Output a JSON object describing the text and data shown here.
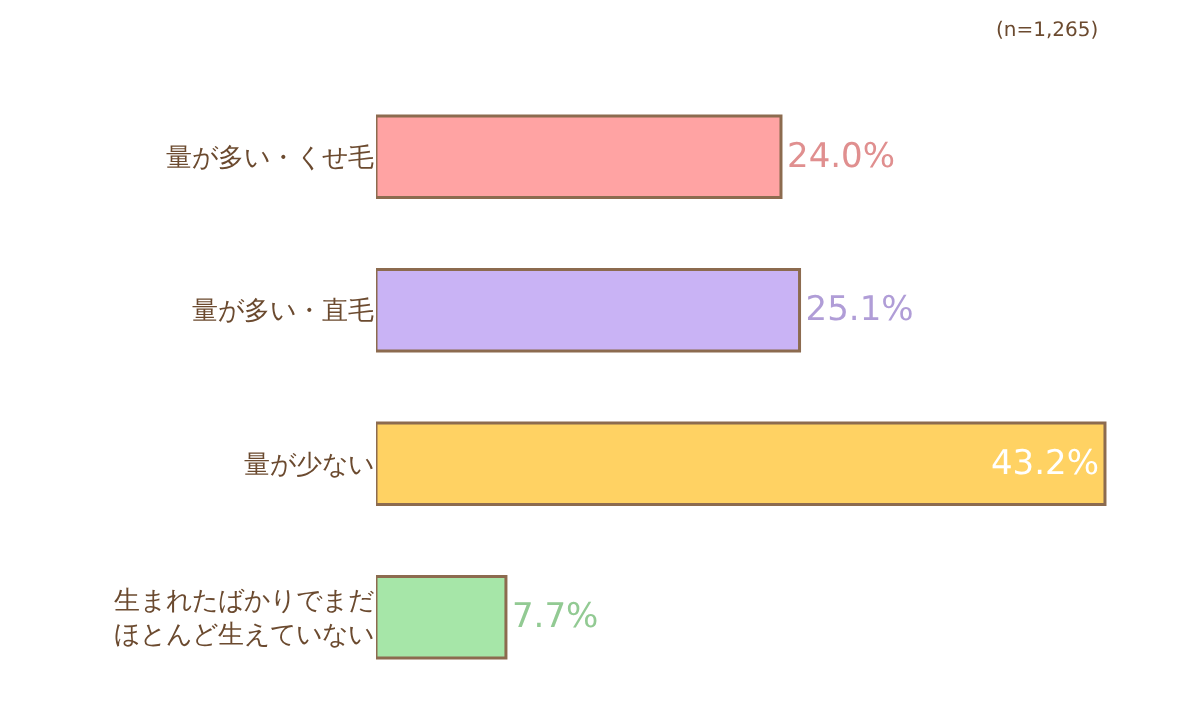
{
  "chart_data": {
    "type": "bar",
    "orientation": "horizontal",
    "categories": [
      "量が多い・くせ毛",
      "量が多い・直毛",
      "量が少ない",
      "生まれたばかりでまだほとんど生えていない"
    ],
    "values": [
      24.0,
      25.1,
      43.2,
      7.7
    ],
    "colors": [
      "#ffa3a3",
      "#c9b3f5",
      "#ffd263",
      "#a6e6a8"
    ],
    "value_labels": [
      "24.0%",
      "25.1%",
      "43.2%",
      "7.7%"
    ],
    "annotations": [
      "(n=1,265)"
    ],
    "legend": false
  }
}
